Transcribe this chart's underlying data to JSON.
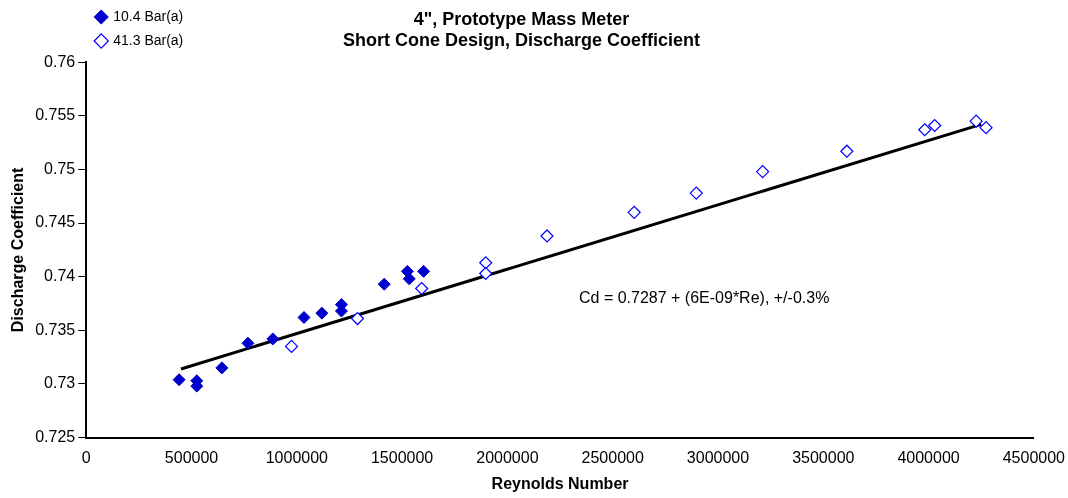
{
  "chart_data": {
    "type": "scatter",
    "title": "4\", Prototype Mass Meter\nShort Cone Design, Discharge Coefficient",
    "xlabel": "Reynolds Number",
    "ylabel": "Discharge Coefficient",
    "series": [
      {
        "name": "10.4 Bar(a)",
        "color": "#0000cc",
        "x": [
          441000,
          525000,
          525000,
          644000,
          768000,
          886000,
          1034000,
          1119000,
          1212000,
          1212000,
          1415000,
          1525000,
          1534000,
          1602000
        ],
        "values": [
          0.7304,
          0.7303,
          0.7298,
          0.7315,
          0.7338,
          0.7342,
          0.7362,
          0.7366,
          0.7374,
          0.7368,
          0.7393,
          0.7405,
          0.7398,
          0.7405
        ]
      },
      {
        "name": "41.3 Bar(a)",
        "color": "#0000ff",
        "x": [
          975000,
          1288000,
          1593000,
          1897000,
          1897000,
          2188000,
          2602000,
          2897000,
          3212000,
          3612000,
          3982000,
          4029000,
          4226000,
          4273000
        ],
        "values": [
          0.7335,
          0.7361,
          0.7389,
          0.7413,
          0.7403,
          0.7438,
          0.746,
          0.7478,
          0.7498,
          0.7517,
          0.7537,
          0.7541,
          0.7545,
          0.7539
        ]
      },
      {
        "type": "line",
        "color": "#000000",
        "marker": "none",
        "x": [
          450000,
          4250000
        ],
        "values": [
          0.7314,
          0.7542
        ]
      }
    ],
    "xlim": [
      0,
      4500000
    ],
    "xticks": [
      0,
      500000,
      1000000,
      1500000,
      2000000,
      2500000,
      3000000,
      3500000,
      4000000,
      4500000
    ],
    "ylim": [
      0.725,
      0.76
    ],
    "yticks": [
      0.725,
      0.73,
      0.735,
      0.74,
      0.745,
      0.75,
      0.755,
      0.76
    ],
    "grid": false,
    "legend": "top left",
    "marker": "diamond",
    "annotations": [
      "Cd = 0.7287 + (6E-09*Re), +/-0.3%"
    ]
  }
}
